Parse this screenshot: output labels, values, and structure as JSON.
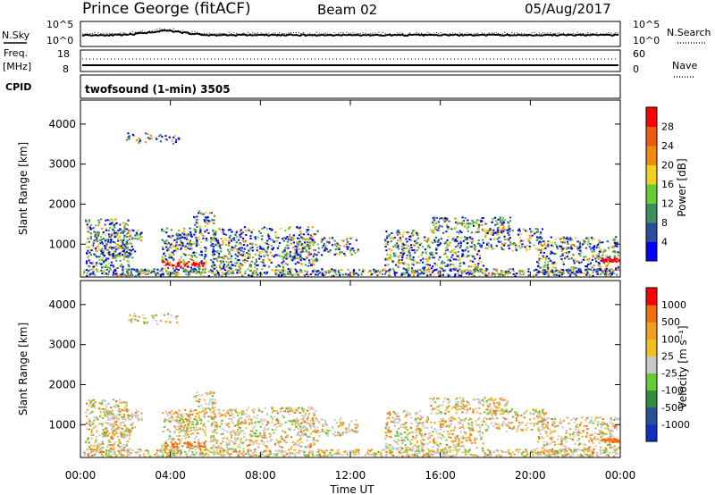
{
  "header": {
    "station": "Prince George (fitACF)",
    "beam": "Beam 02",
    "date": "05/Aug/2017"
  },
  "noise_panel": {
    "left_label": "N.Sky",
    "left_ticks": [
      "10^5",
      "10^0"
    ],
    "right_label": "N.Search",
    "right_ticks": [
      "10^5",
      "10^0"
    ]
  },
  "freq_panel": {
    "left_label_1": "Freq.",
    "left_label_2": "[MHz]",
    "left_ticks": [
      "18",
      "8"
    ],
    "right_label": "Nave",
    "right_ticks": [
      "60",
      "0"
    ]
  },
  "cpid_panel": {
    "label": "CPID",
    "program": "twofsound (1-min) 3505"
  },
  "chart_data": [
    {
      "type": "heatmap",
      "name": "power",
      "ylabel": "Slant Range [km]",
      "yticks": [
        1000,
        2000,
        3000,
        4000
      ],
      "ylim": [
        180,
        4600
      ],
      "xlim": [
        0,
        24
      ],
      "xticks": [
        "00:00",
        "04:00",
        "08:00",
        "12:00",
        "16:00",
        "20:00",
        "00:00"
      ],
      "colorbar": {
        "label": "Power [dB]",
        "ticks": [
          "4",
          "8",
          "12",
          "16",
          "20",
          "24",
          "28"
        ],
        "colors": [
          "#0000ff",
          "#2a4f9a",
          "#3a8f5a",
          "#66cc33",
          "#f0d020",
          "#f08a10",
          "#f05a10",
          "#ff0000"
        ]
      }
    },
    {
      "type": "heatmap",
      "name": "velocity",
      "ylabel": "Slant Range [km]",
      "yticks": [
        1000,
        2000,
        3000,
        4000
      ],
      "ylim": [
        180,
        4600
      ],
      "xlim": [
        0,
        24
      ],
      "xticks": [
        "00:00",
        "04:00",
        "08:00",
        "12:00",
        "16:00",
        "20:00",
        "00:00"
      ],
      "xlabel": "Time UT",
      "colorbar": {
        "label": "Velocity [m s⁻¹]",
        "ticks": [
          "1000",
          "500",
          "100",
          "25",
          "-25",
          "-100",
          "-500",
          "-1000"
        ],
        "colors": [
          "#1030c0",
          "#2a4f9a",
          "#2e8c3c",
          "#66cc33",
          "#c8c8c8",
          "#f0c020",
          "#f0a020",
          "#f07010",
          "#ff0000"
        ]
      }
    }
  ]
}
